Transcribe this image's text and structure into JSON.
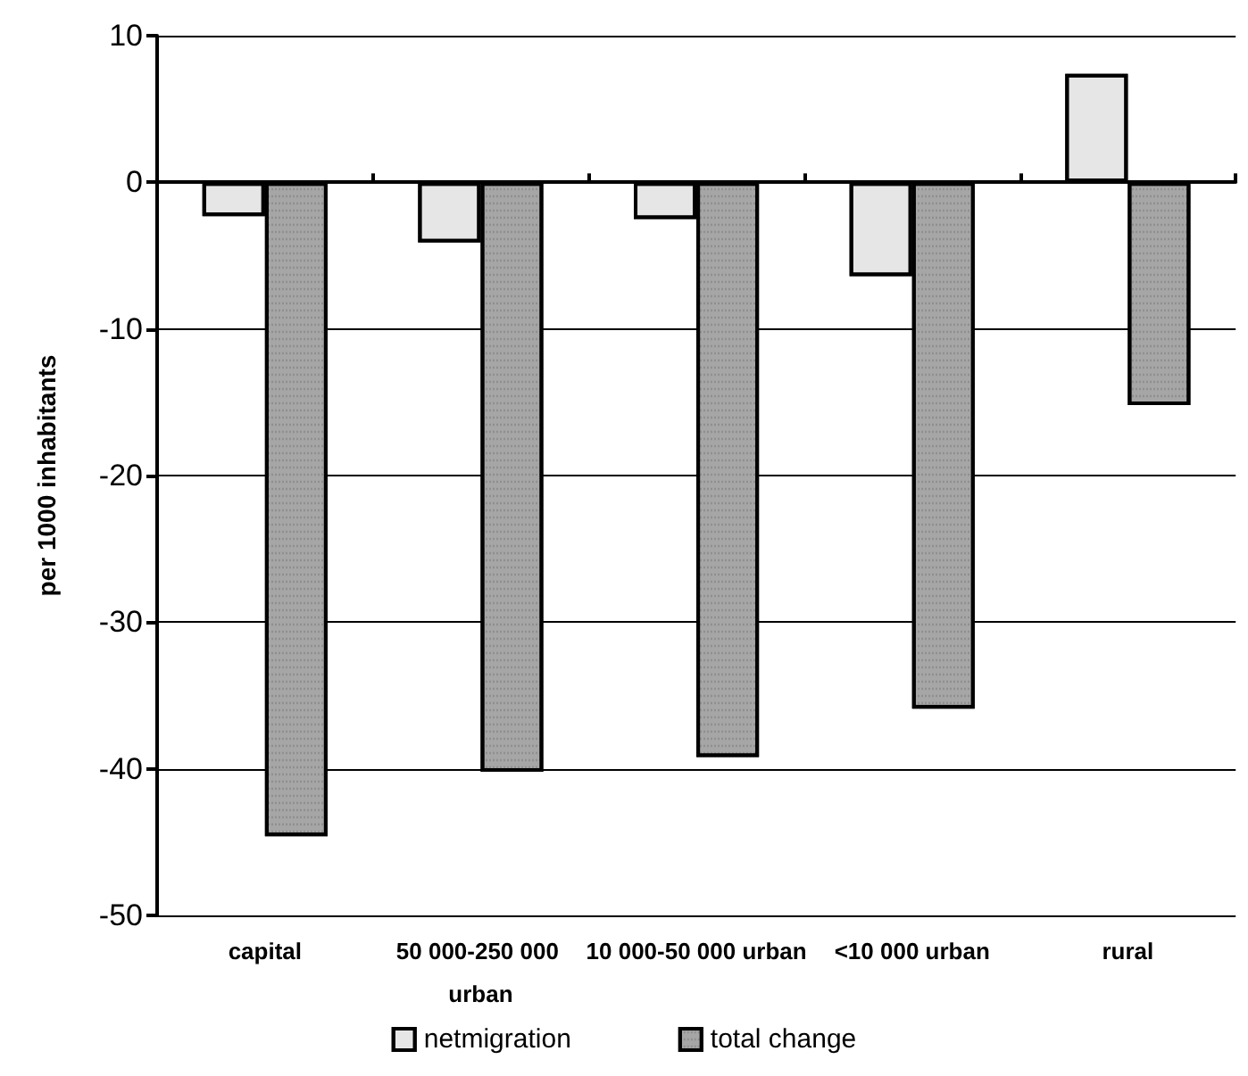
{
  "chart_data": {
    "type": "bar",
    "ylabel": "per 1000 inhabitants",
    "categories": [
      "capital",
      "50 000-250 000 urban",
      "10 000-50 000 urban",
      "<10 000 urban",
      "rural"
    ],
    "series": [
      {
        "name": "netmigration",
        "color": "#e6e6e6",
        "values": [
          -2.3,
          -4.1,
          -2.5,
          -6.4,
          7.4
        ]
      },
      {
        "name": "total change",
        "color": "#a6a6a6",
        "values": [
          -44.6,
          -40.2,
          -39.2,
          -35.9,
          -15.2
        ]
      }
    ],
    "ylim": [
      -50,
      10
    ],
    "yticks": [
      -50,
      -40,
      -30,
      -20,
      -10,
      0,
      10
    ],
    "grid": "y",
    "legend": "bottom"
  }
}
